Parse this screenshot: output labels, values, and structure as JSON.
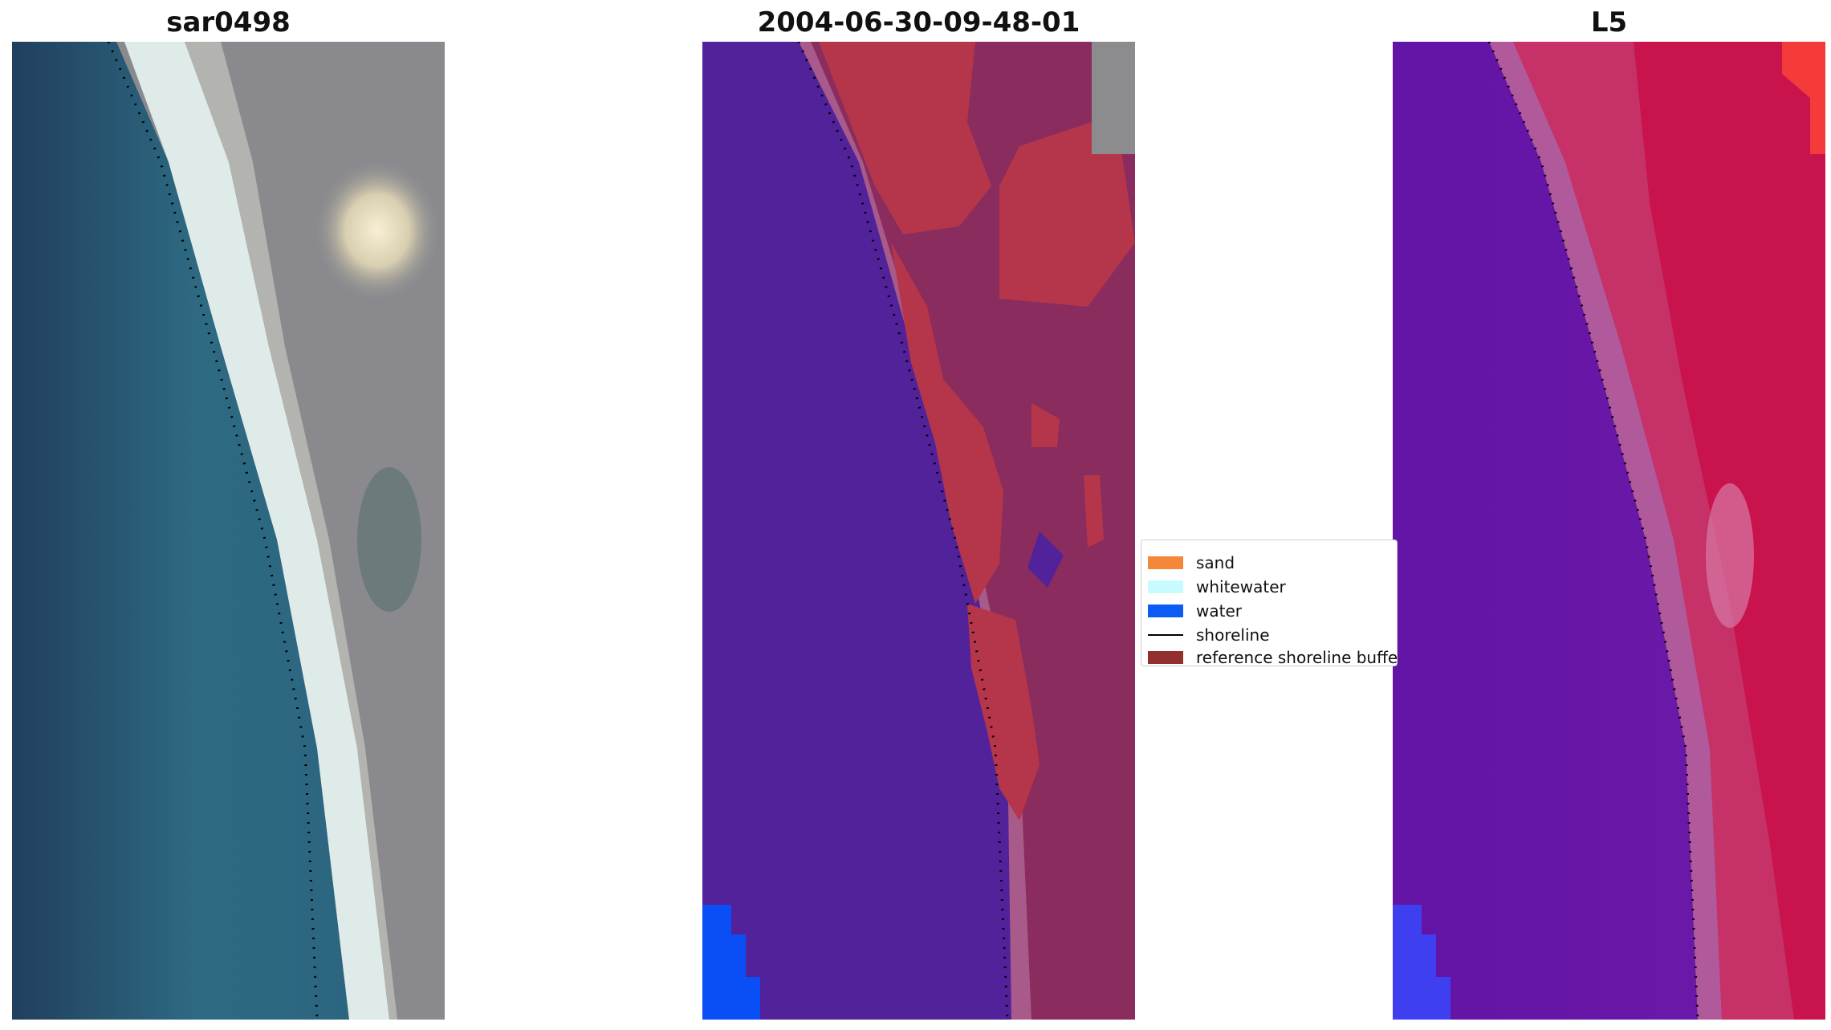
{
  "panels": [
    {
      "title": "sar0498"
    },
    {
      "title": "2004-06-30-09-48-01"
    },
    {
      "title": "L5"
    }
  ],
  "legend": {
    "items": [
      {
        "label": "sand",
        "color": "#f5873a",
        "type": "patch"
      },
      {
        "label": "whitewater",
        "color": "#c8fbff",
        "type": "patch"
      },
      {
        "label": "water",
        "color": "#0a5cf5",
        "type": "patch"
      },
      {
        "label": "shoreline",
        "color": "#000000",
        "type": "line"
      },
      {
        "label": "reference shoreline buffer",
        "color": "#932f2f",
        "type": "patch"
      }
    ]
  },
  "colors": {
    "rgb_water": "#24506a",
    "rgb_surf": "#e6f3ee",
    "rgb_land": "#8a8a8c",
    "class_water_overlay": "#51229a",
    "class_sand_overlay": "#b5364b",
    "class_land_overlay": "#8a2c5e",
    "class_open_water": "#0a4ff5",
    "index_water": "#6f17a6",
    "index_land": "#c8134c",
    "index_open_water": "#3f3ff2"
  }
}
